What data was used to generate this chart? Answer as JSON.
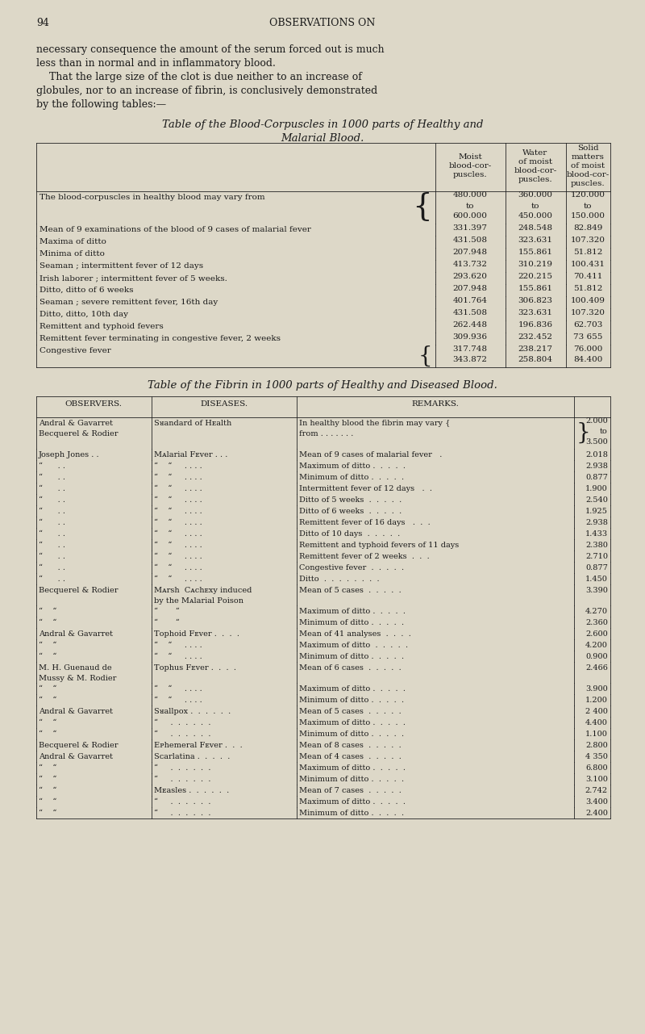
{
  "bg_color": "#ddd8c8",
  "text_color": "#1a1a1a",
  "page_number": "94",
  "page_header": "OBSERVATIONS ON",
  "intro_text": [
    "necessary consequence the amount of the serum forced out is much",
    "less than in normal and in inflammatory blood.",
    "    That the large size of the clot is due neither to an increase of",
    "globules, nor to an increase of fibrin, is conclusively demonstrated",
    "by the following tables:—"
  ],
  "table1_title_line1": "Table of the Blood-Corpuscles in 1000 parts of Healthy and",
  "table1_title_line2": "Malarial Blood.",
  "table1_col_headers": [
    [
      "Moist",
      "blood-cor-",
      "puscles."
    ],
    [
      "Water",
      "of moist",
      "blood-cor-",
      "puscles."
    ],
    [
      "Solid",
      "matters",
      "of moist",
      "blood-cor-",
      "puscles."
    ]
  ],
  "table1_rows": [
    {
      "label": "The blood-corpuscles in healthy blood may vary from",
      "dot_leader": "   .",
      "brace": true,
      "vals": [
        [
          "480.000",
          "to",
          "600.000"
        ],
        [
          "360.000",
          "to",
          "450.000"
        ],
        [
          "120.000",
          "to",
          "150.000"
        ]
      ]
    },
    {
      "label": "Mean of 9 examinations of the blood of 9 cases of malarial fever",
      "dot_leader": "",
      "brace": false,
      "vals": [
        [
          "331.397"
        ],
        [
          "248.548"
        ],
        [
          "82.849"
        ]
      ]
    },
    {
      "label": "Maxima of ditto",
      "dot_leader": "  .  .  .  .  .  .  .  .  .  .",
      "brace": false,
      "vals": [
        [
          "431.508"
        ],
        [
          "323.631"
        ],
        [
          "107.320"
        ]
      ]
    },
    {
      "label": "Minima of ditto",
      "dot_leader": "  .  .  .  .  .  .  .  .  .  .",
      "brace": false,
      "vals": [
        [
          "207.948"
        ],
        [
          "155.861"
        ],
        [
          "51.812"
        ]
      ]
    },
    {
      "label": "Seaman ; intermittent fever of 12 days",
      "dot_leader": "  .  .  .  .  .",
      "brace": false,
      "vals": [
        [
          "413.732"
        ],
        [
          "310.219"
        ],
        [
          "100.431"
        ]
      ]
    },
    {
      "label": "Irish laborer ; intermittent fever of 5 weeks.",
      "dot_leader": "  .  .  .  .",
      "brace": false,
      "vals": [
        [
          "293.620"
        ],
        [
          "220.215"
        ],
        [
          "70.411"
        ]
      ]
    },
    {
      "label": "Ditto, ditto of 6 weeks",
      "dot_leader": "  .  .  .  .  .  .  .  .  .  .",
      "brace": false,
      "vals": [
        [
          "207.948"
        ],
        [
          "155.861"
        ],
        [
          "51.812"
        ]
      ]
    },
    {
      "label": "Seaman ; severe remittent fever, 16th day",
      "dot_leader": "  .  .  .  .  .",
      "brace": false,
      "vals": [
        [
          "401.764"
        ],
        [
          "306.823"
        ],
        [
          "100.409"
        ]
      ]
    },
    {
      "label": "Ditto, ditto, 10th day",
      "dot_leader": "  .  .  .  .  .  .  .  .  .",
      "brace": false,
      "vals": [
        [
          "431.508"
        ],
        [
          "323.631"
        ],
        [
          "107.320"
        ]
      ]
    },
    {
      "label": "Remittent and typhoid fevers",
      "dot_leader": "  .  .  .  .  .  .  .",
      "brace": false,
      "vals": [
        [
          "262.448"
        ],
        [
          "196.836"
        ],
        [
          "62.703"
        ]
      ]
    },
    {
      "label": "Remittent fever terminating in congestive fever, 2 weeks",
      "dot_leader": "  .",
      "brace": false,
      "vals": [
        [
          "309.936"
        ],
        [
          "232.452"
        ],
        [
          "73 655"
        ]
      ]
    },
    {
      "label": "Congestive fever",
      "dot_leader": "  .  .  .  .  .  .  .  .  .  .",
      "brace": true,
      "vals": [
        [
          "317.748",
          "343.872"
        ],
        [
          "238.217",
          "258.804"
        ],
        [
          "76.000",
          "84.400"
        ]
      ]
    }
  ],
  "table2_title": "Table of the Fibrin in 1000 parts of Healthy and Diseased Blood.",
  "table2_rows": [
    {
      "obs": [
        "Andral & Gavarret",
        "Becquerel & Rodier"
      ],
      "dis": [
        "Sᴚandard of Hᴇalth"
      ],
      "rem": [
        "In healthy blood the fibrin may vary {",
        "from . . . . . . ."
      ],
      "brace_obs": true,
      "brace_rem": true,
      "val": [
        "2.000",
        "to",
        "3.500"
      ]
    },
    {
      "obs": [
        "Joseph Jones . ."
      ],
      "dis": [
        "Mᴀlarial Fᴇver . . ."
      ],
      "rem": [
        "Mean of 9 cases of malarial fever   ."
      ],
      "brace_obs": false,
      "brace_rem": false,
      "val": [
        "2.018"
      ]
    },
    {
      "obs": [
        "“      . ."
      ],
      "dis": [
        "“    “     . . . ."
      ],
      "rem": [
        "Maximum of ditto .  .  .  .  ."
      ],
      "brace_obs": false,
      "brace_rem": false,
      "val": [
        "2.938"
      ]
    },
    {
      "obs": [
        "“      . ."
      ],
      "dis": [
        "“    “     . . . ."
      ],
      "rem": [
        "Minimum of ditto .  .  .  .  ."
      ],
      "brace_obs": false,
      "brace_rem": false,
      "val": [
        "0.877"
      ]
    },
    {
      "obs": [
        "“      . ."
      ],
      "dis": [
        "“    “     . . . ."
      ],
      "rem": [
        "Intermittent fever of 12 days   .  ."
      ],
      "brace_obs": false,
      "brace_rem": false,
      "val": [
        "1.900"
      ]
    },
    {
      "obs": [
        "“      . ."
      ],
      "dis": [
        "“    “     . . . ."
      ],
      "rem": [
        "Ditto of 5 weeks  .  .  .  .  ."
      ],
      "brace_obs": false,
      "brace_rem": false,
      "val": [
        "2.540"
      ]
    },
    {
      "obs": [
        "“      . ."
      ],
      "dis": [
        "“    “     . . . ."
      ],
      "rem": [
        "Ditto of 6 weeks  .  .  .  .  ."
      ],
      "brace_obs": false,
      "brace_rem": false,
      "val": [
        "1.925"
      ]
    },
    {
      "obs": [
        "“      . ."
      ],
      "dis": [
        "“    “     . . . ."
      ],
      "rem": [
        "Remittent fever of 16 days   .  .  ."
      ],
      "brace_obs": false,
      "brace_rem": false,
      "val": [
        "2.938"
      ]
    },
    {
      "obs": [
        "“      . ."
      ],
      "dis": [
        "“    “     . . . ."
      ],
      "rem": [
        "Ditto of 10 days  .  .  .  .  ."
      ],
      "brace_obs": false,
      "brace_rem": false,
      "val": [
        "1.433"
      ]
    },
    {
      "obs": [
        "“      . ."
      ],
      "dis": [
        "“    “     . . . ."
      ],
      "rem": [
        "Remittent and typhoid fevers of 11 days"
      ],
      "brace_obs": false,
      "brace_rem": false,
      "val": [
        "2.380"
      ]
    },
    {
      "obs": [
        "“      . ."
      ],
      "dis": [
        "“    “     . . . ."
      ],
      "rem": [
        "Remittent fever of 2 weeks  .  .  ."
      ],
      "brace_obs": false,
      "brace_rem": false,
      "val": [
        "2.710"
      ]
    },
    {
      "obs": [
        "“      . ."
      ],
      "dis": [
        "“    “     . . . ."
      ],
      "rem": [
        "Congestive fever  .  .  .  .  ."
      ],
      "brace_obs": false,
      "brace_rem": false,
      "val": [
        "0.877"
      ]
    },
    {
      "obs": [
        "“      . ."
      ],
      "dis": [
        "“    “     . . . ."
      ],
      "rem": [
        "Ditto  .  .  .  .  .  .  .  ."
      ],
      "brace_obs": false,
      "brace_rem": false,
      "val": [
        "1.450"
      ]
    },
    {
      "obs": [
        "Becquerel & Rodier"
      ],
      "dis": [
        "Mᴀrsh  Cᴀchᴇxy induced",
        "by the Mᴀlarial Pᴏison"
      ],
      "rem": [
        "Mean of 5 cases  .  .  .  .  ."
      ],
      "brace_obs": false,
      "brace_rem": false,
      "val": [
        "3.390"
      ]
    },
    {
      "obs": [
        "“    “"
      ],
      "dis": [
        "“       “"
      ],
      "rem": [
        "Maximum of ditto .  .  .  .  ."
      ],
      "brace_obs": false,
      "brace_rem": false,
      "val": [
        "4.270"
      ]
    },
    {
      "obs": [
        "“    “"
      ],
      "dis": [
        "“       “"
      ],
      "rem": [
        "Minimum of ditto .  .  .  .  ."
      ],
      "brace_obs": false,
      "brace_rem": false,
      "val": [
        "2.360"
      ]
    },
    {
      "obs": [
        "Andral & Gavarret"
      ],
      "dis": [
        "Tᴏphoid Fᴇver .  .  .  ."
      ],
      "rem": [
        "Mean of 41 analyses  .  .  .  ."
      ],
      "brace_obs": false,
      "brace_rem": false,
      "val": [
        "2.600"
      ]
    },
    {
      "obs": [
        "“    “"
      ],
      "dis": [
        "“    “     . . . ."
      ],
      "rem": [
        "Maximum of ditto  .  .  .  .  ."
      ],
      "brace_obs": false,
      "brace_rem": false,
      "val": [
        "4.200"
      ]
    },
    {
      "obs": [
        "“    “"
      ],
      "dis": [
        "“    “     . . . ."
      ],
      "rem": [
        "Minimum of ditto .  .  .  .  ."
      ],
      "brace_obs": false,
      "brace_rem": false,
      "val": [
        "0.900"
      ]
    },
    {
      "obs": [
        "M. H. Guenaud de",
        "Mussy & M. Rodier"
      ],
      "dis": [
        "Tᴏphus Fᴇver .  .  .  ."
      ],
      "rem": [
        "Mean of 6 cases  .  .  .  .  ."
      ],
      "brace_obs": false,
      "brace_rem": false,
      "val": [
        "2.466"
      ]
    },
    {
      "obs": [
        "“    “"
      ],
      "dis": [
        "“    “     . . . ."
      ],
      "rem": [
        "Maximum of ditto .  .  .  .  ."
      ],
      "brace_obs": false,
      "brace_rem": false,
      "val": [
        "3.900"
      ]
    },
    {
      "obs": [
        "“    “"
      ],
      "dis": [
        "“    “     . . . ."
      ],
      "rem": [
        "Minimum of ditto .  .  .  .  ."
      ],
      "brace_obs": false,
      "brace_rem": false,
      "val": [
        "1.200"
      ]
    },
    {
      "obs": [
        "Andral & Gavarret"
      ],
      "dis": [
        "Sᴚallpox .  .  .  .  .  ."
      ],
      "rem": [
        "Mean of 5 cases  .  .  .  .  ."
      ],
      "brace_obs": false,
      "brace_rem": false,
      "val": [
        "2 400"
      ]
    },
    {
      "obs": [
        "“    “"
      ],
      "dis": [
        "“     .  .  .  .  .  ."
      ],
      "rem": [
        "Maximum of ditto .  .  .  .  ."
      ],
      "brace_obs": false,
      "brace_rem": false,
      "val": [
        "4.400"
      ]
    },
    {
      "obs": [
        "“    “"
      ],
      "dis": [
        "“     .  .  .  .  .  ."
      ],
      "rem": [
        "Minimum of ditto .  .  .  .  ."
      ],
      "brace_obs": false,
      "brace_rem": false,
      "val": [
        "1.100"
      ]
    },
    {
      "obs": [
        "Becquerel & Rodier"
      ],
      "dis": [
        "Eᴘhemeral Fᴇver .  .  ."
      ],
      "rem": [
        "Mean of 8 cases  .  .  .  .  ."
      ],
      "brace_obs": false,
      "brace_rem": false,
      "val": [
        "2.800"
      ]
    },
    {
      "obs": [
        "Andral & Gavarret"
      ],
      "dis": [
        "Sᴄarlatina .  .  .  .  ."
      ],
      "rem": [
        "Mean of 4 cases  .  .  .  .  ."
      ],
      "brace_obs": false,
      "brace_rem": false,
      "val": [
        "4 350"
      ]
    },
    {
      "obs": [
        "“    “"
      ],
      "dis": [
        "“     .  .  .  .  .  ."
      ],
      "rem": [
        "Maximum of ditto .  .  .  .  ."
      ],
      "brace_obs": false,
      "brace_rem": false,
      "val": [
        "6.800"
      ]
    },
    {
      "obs": [
        "“    “"
      ],
      "dis": [
        "“     .  .  .  .  .  ."
      ],
      "rem": [
        "Minimum of ditto .  .  .  .  ."
      ],
      "brace_obs": false,
      "brace_rem": false,
      "val": [
        "3.100"
      ]
    },
    {
      "obs": [
        "“    “"
      ],
      "dis": [
        "Mᴇasles .  .  .  .  .  ."
      ],
      "rem": [
        "Mean of 7 cases  .  .  .  .  ."
      ],
      "brace_obs": false,
      "brace_rem": false,
      "val": [
        "2.742"
      ]
    },
    {
      "obs": [
        "“    “"
      ],
      "dis": [
        "“     .  .  .  .  .  ."
      ],
      "rem": [
        "Maximum of ditto .  .  .  .  ."
      ],
      "brace_obs": false,
      "brace_rem": false,
      "val": [
        "3.400"
      ]
    },
    {
      "obs": [
        "“    “"
      ],
      "dis": [
        "“     .  .  .  .  .  ."
      ],
      "rem": [
        "Minimum of ditto .  .  .  .  ."
      ],
      "brace_obs": false,
      "brace_rem": false,
      "val": [
        "2.400"
      ]
    }
  ]
}
